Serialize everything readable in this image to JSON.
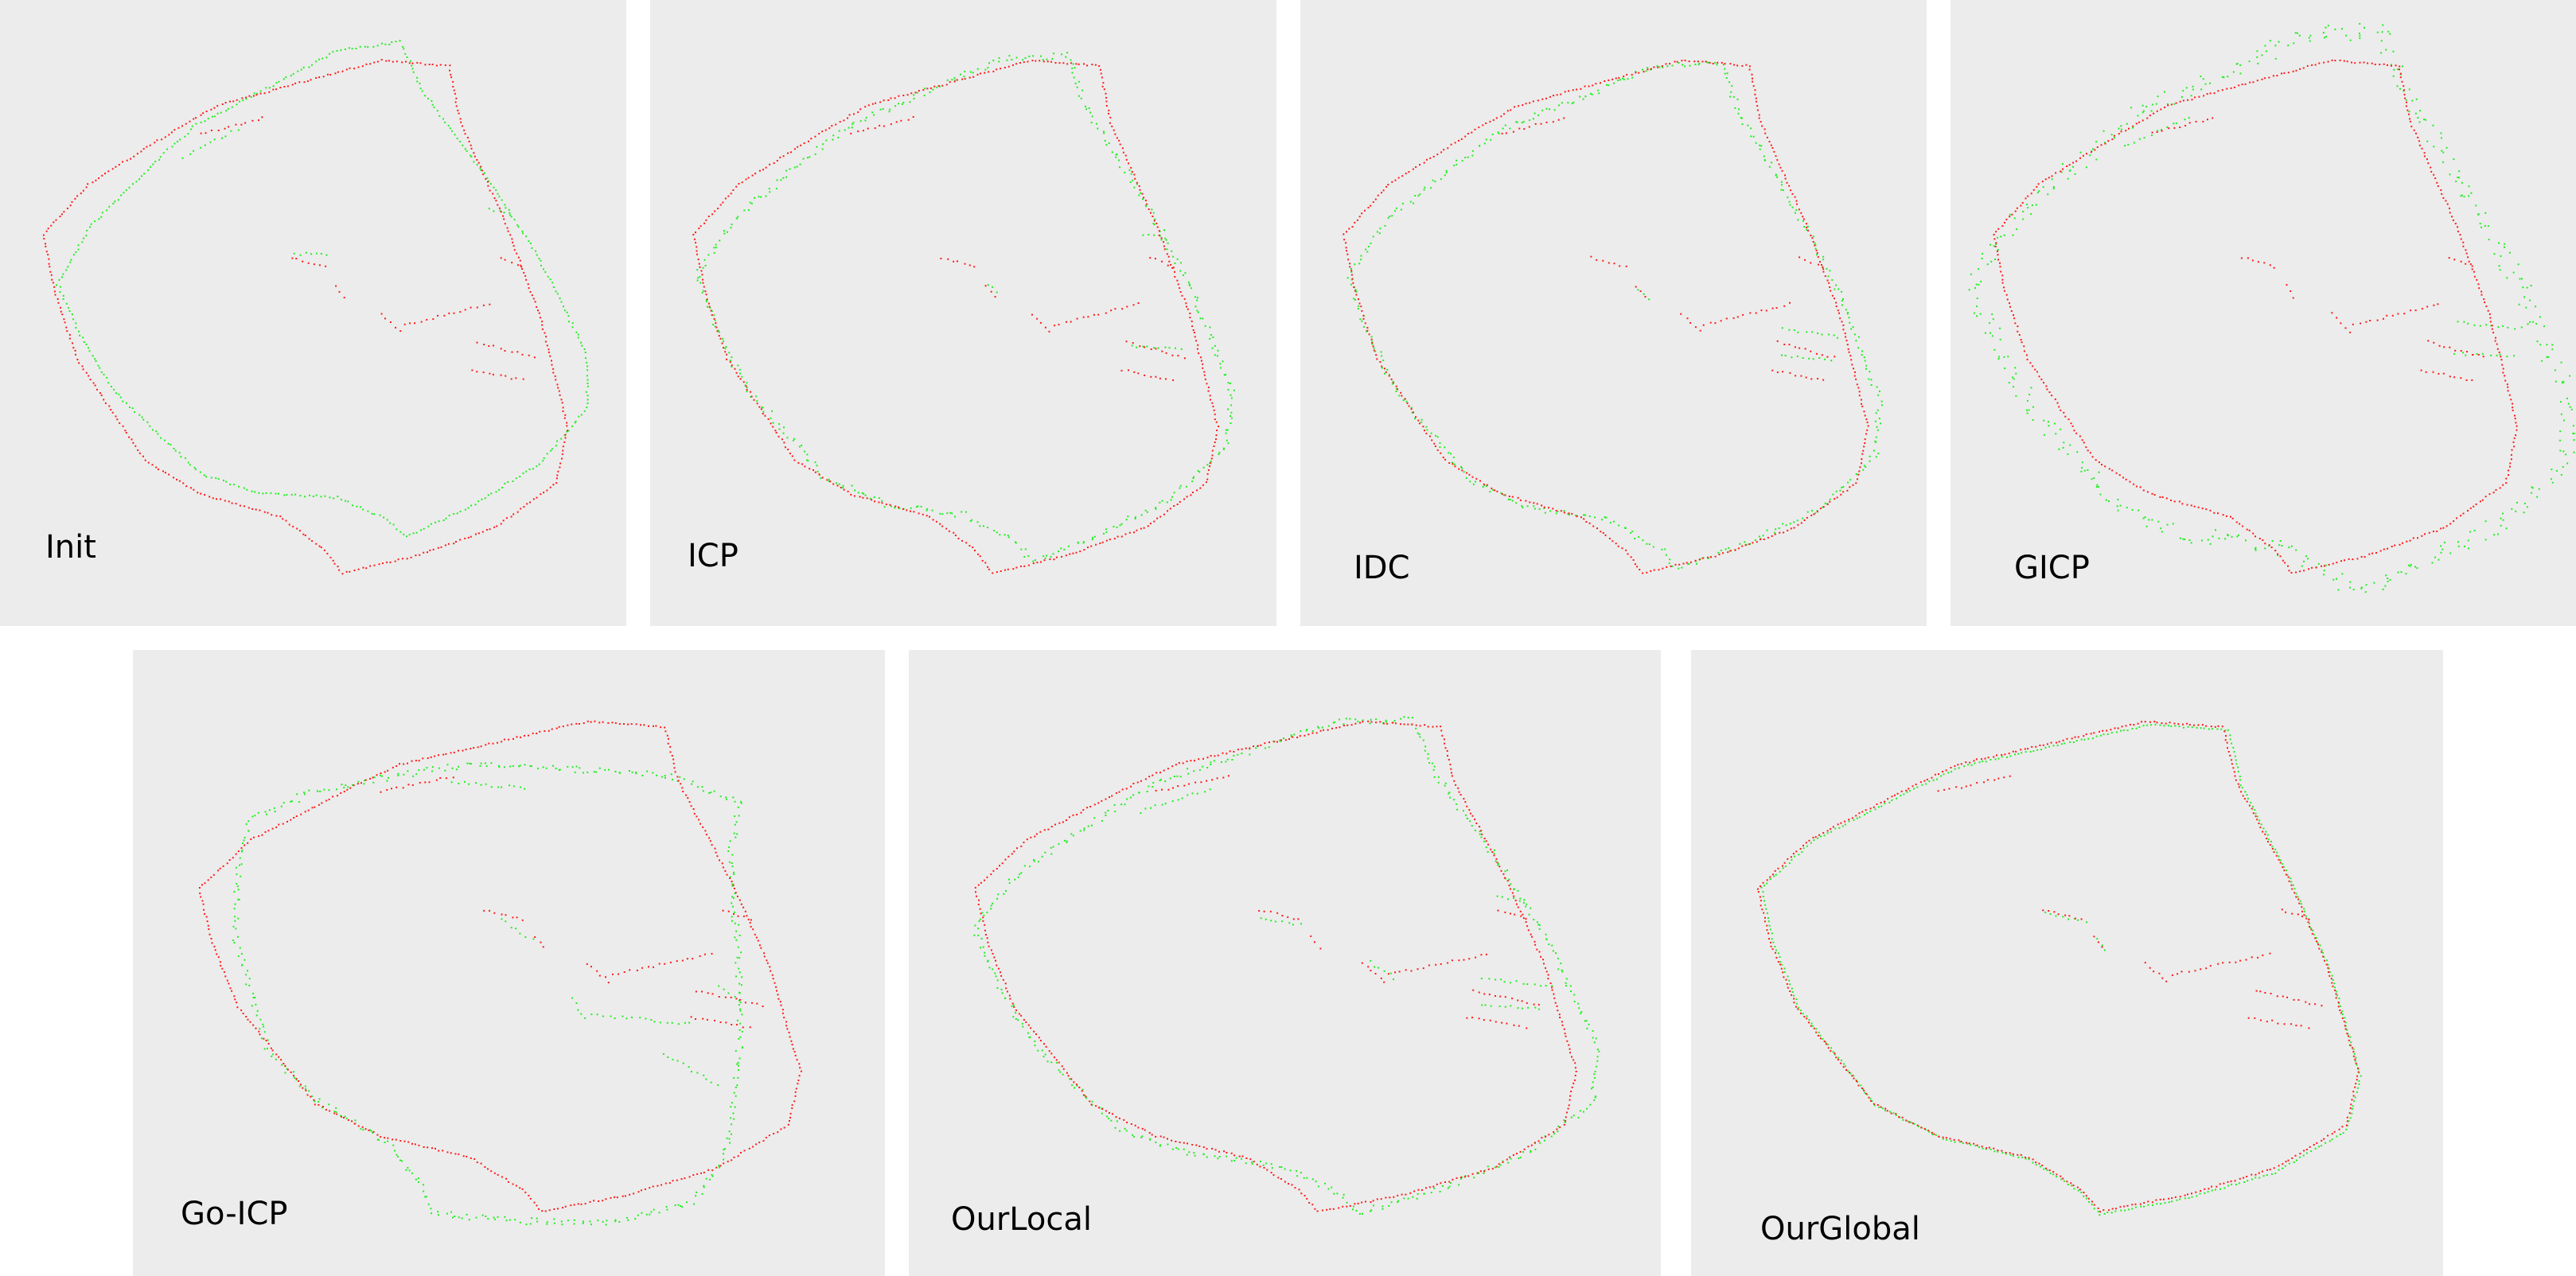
{
  "colors": {
    "target": "#ff1a1a",
    "source": "#22ee22",
    "background": "#ececec"
  },
  "panels": [
    {
      "label": "Init"
    },
    {
      "label": "ICP"
    },
    {
      "label": "IDC"
    },
    {
      "label": "GICP"
    },
    {
      "label": "Go-ICP"
    },
    {
      "label": "OurLocal"
    },
    {
      "label": "OurGlobal"
    }
  ]
}
